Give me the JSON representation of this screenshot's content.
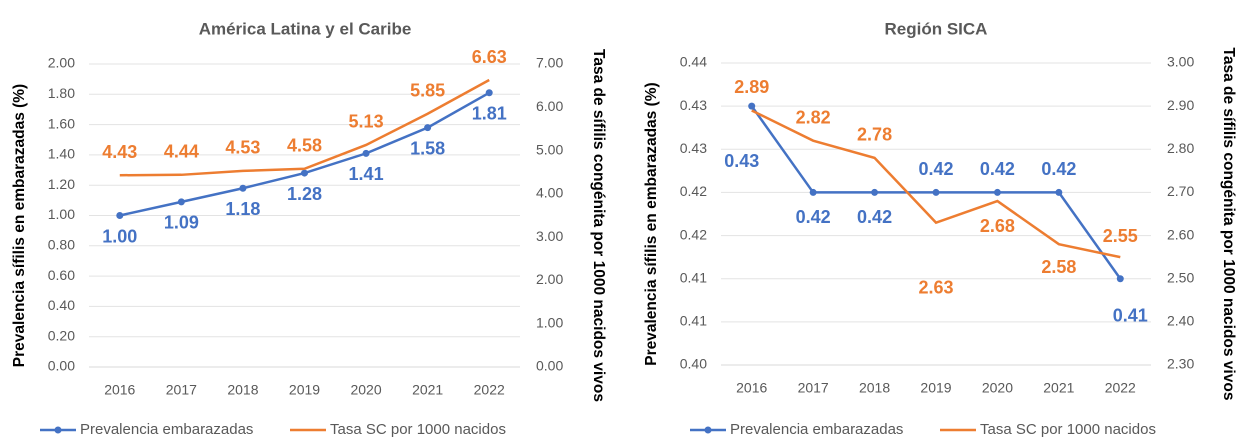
{
  "chart_data": [
    {
      "type": "line",
      "title": "América Latina y el Caribe",
      "categories": [
        "2016",
        "2017",
        "2018",
        "2019",
        "2020",
        "2021",
        "2022"
      ],
      "y_label": "Prevalencia sífilis en embarazadas (%)",
      "y2_label": "Tasa de sífilis congénita por 1000 nacidos vivos",
      "ylim": [
        0,
        2
      ],
      "yticks": [
        {
          "value": 0,
          "label": "0.00"
        },
        {
          "value": 0.2,
          "label": "0.20"
        },
        {
          "value": 0.4,
          "label": "0.40"
        },
        {
          "value": 0.6,
          "label": "0.60"
        },
        {
          "value": 0.8,
          "label": "0.80"
        },
        {
          "value": 1,
          "label": "1.00"
        },
        {
          "value": 1.2,
          "label": "1.20"
        },
        {
          "value": 1.4,
          "label": "1.40"
        },
        {
          "value": 1.6,
          "label": "1.60"
        },
        {
          "value": 1.8,
          "label": "1.80"
        },
        {
          "value": 2,
          "label": "2.00"
        }
      ],
      "y2lim": [
        0,
        7
      ],
      "y2ticks": [
        {
          "value": 0,
          "label": "0.00"
        },
        {
          "value": 1,
          "label": "1.00"
        },
        {
          "value": 2,
          "label": "2.00"
        },
        {
          "value": 3,
          "label": "3.00"
        },
        {
          "value": 4,
          "label": "4.00"
        },
        {
          "value": 5,
          "label": "5.00"
        },
        {
          "value": 6,
          "label": "6.00"
        },
        {
          "value": 7,
          "label": "7.00"
        }
      ],
      "grid": true,
      "series": [
        {
          "name": "Prevalencia embarazadas",
          "color": "#4472c4",
          "marker": true,
          "values": [
            1.0,
            1.09,
            1.18,
            1.28,
            1.41,
            1.58,
            1.81
          ],
          "value_labels": [
            "1.00",
            "1.09",
            "1.18",
            "1.28",
            "1.41",
            "1.58",
            "1.81"
          ]
        },
        {
          "name": "Tasa SC por 1000 nacidos",
          "color": "#ed7d31",
          "axis": "y2",
          "marker": false,
          "values": [
            4.43,
            4.44,
            4.53,
            4.58,
            5.13,
            5.85,
            6.63
          ],
          "value_labels": [
            "4.43",
            "4.44",
            "4.53",
            "4.58",
            "5.13",
            "5.85",
            "6.63"
          ]
        }
      ]
    },
    {
      "type": "line",
      "title": "Región SICA",
      "categories": [
        "2016",
        "2017",
        "2018",
        "2019",
        "2020",
        "2021",
        "2022"
      ],
      "y_label": "Prevalencia sífilis en embarazadas (%)",
      "y2_label": "Tasa de sífilis congénita por 1000 nacidos vivos",
      "ylim": [
        0.4,
        0.435
      ],
      "yticks": [
        {
          "value": 0.4,
          "label": "0.40"
        },
        {
          "value": 0.405,
          "label": "0.41"
        },
        {
          "value": 0.41,
          "label": "0.41"
        },
        {
          "value": 0.415,
          "label": "0.42"
        },
        {
          "value": 0.42,
          "label": "0.42"
        },
        {
          "value": 0.425,
          "label": "0.43"
        },
        {
          "value": 0.43,
          "label": "0.43"
        },
        {
          "value": 0.435,
          "label": "0.44"
        }
      ],
      "y2lim": [
        2.3,
        3.0
      ],
      "y2ticks": [
        {
          "value": 2.3,
          "label": "2.30"
        },
        {
          "value": 2.4,
          "label": "2.40"
        },
        {
          "value": 2.5,
          "label": "2.50"
        },
        {
          "value": 2.6,
          "label": "2.60"
        },
        {
          "value": 2.7,
          "label": "2.70"
        },
        {
          "value": 2.8,
          "label": "2.80"
        },
        {
          "value": 2.9,
          "label": "2.90"
        },
        {
          "value": 3.0,
          "label": "3.00"
        }
      ],
      "grid": true,
      "series": [
        {
          "name": "Prevalencia embarazadas",
          "color": "#4472c4",
          "marker": true,
          "values": [
            0.43,
            0.42,
            0.42,
            0.42,
            0.42,
            0.42,
            0.41
          ],
          "value_labels": [
            "0.43",
            "0.42",
            "0.42",
            "0.42",
            "0.42",
            "0.42",
            "0.41"
          ]
        },
        {
          "name": "Tasa SC por 1000 nacidos",
          "color": "#ed7d31",
          "axis": "y2",
          "marker": false,
          "values": [
            2.89,
            2.82,
            2.78,
            2.63,
            2.68,
            2.58,
            2.55
          ],
          "value_labels": [
            "2.89",
            "2.82",
            "2.78",
            "2.63",
            "2.68",
            "2.58",
            "2.55"
          ]
        }
      ]
    }
  ]
}
